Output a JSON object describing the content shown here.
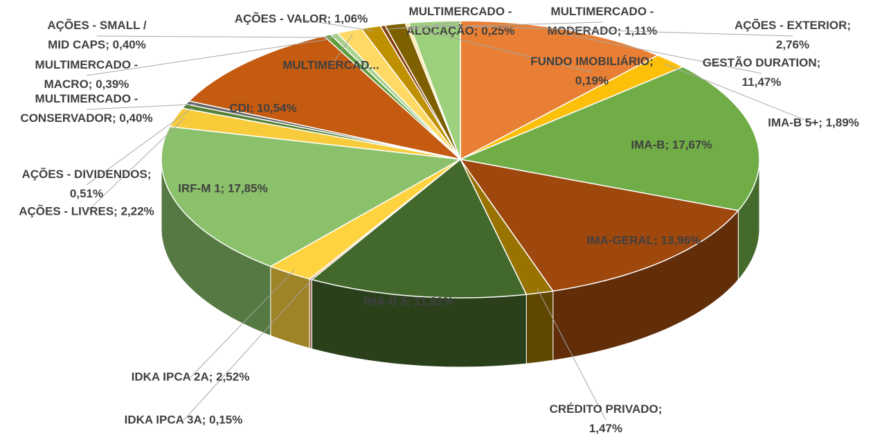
{
  "chart_data": {
    "type": "pie3d",
    "values": [
      11.47,
      1.89,
      17.67,
      13.96,
      1.47,
      11.81,
      0.15,
      2.52,
      17.85,
      2.22,
      0.51,
      0.4,
      10.54,
      0.39,
      0.4,
      1.38,
      1.06,
      0.25,
      1.11,
      0.19,
      2.76
    ],
    "value_labels": [
      "GESTÃO DURATION; 11,47%",
      "IMA-B 5+; 1,89%",
      "IMA-B; 17,67%",
      "IMA-GERAL; 13,96%",
      "CRÉDITO PRIVADO; 1,47%",
      "IMA-B 5; 11,81%",
      "IDKA IPCA 3A; 0,15%",
      "IDKA IPCA 2A; 2,52%",
      "IRF-M 1; 17,85%",
      "AÇÕES - LIVRES; 2,22%",
      "AÇÕES - DIVIDENDOS; 0,51%",
      "MULTIMERCADO - CONSERVADOR; 0,40%",
      "CDI; 10,54%",
      "MULTIMERCADO - MACRO; 0,39%",
      "AÇÕES - SMALL / MID CAPS; 0,40%",
      "MULTIMERCAD...",
      "AÇÕES - VALOR; 1,06%",
      "MULTIMERCADO - ALOCAÇÃO; 0,25%",
      "MULTIMERCADO - MODERADO; 1,11%",
      "FUNDO IMOBILIÁRIO; 0,19%",
      "AÇÕES - EXTERIOR; 2,76%"
    ],
    "colors": [
      "#e97f34",
      "#fcc00a",
      "#70ad47",
      "#9e480e",
      "#997300",
      "#43682b",
      "#f4b183",
      "#ffd33f",
      "#8bc16a",
      "#f8cb3a",
      "#548235",
      "#636363",
      "#c55a11",
      "#5e9e3c",
      "#a9d18e",
      "#ffd966",
      "#bf9000",
      "#843c0c",
      "#7f6000",
      "#ffe699",
      "#9dd07c"
    ]
  }
}
